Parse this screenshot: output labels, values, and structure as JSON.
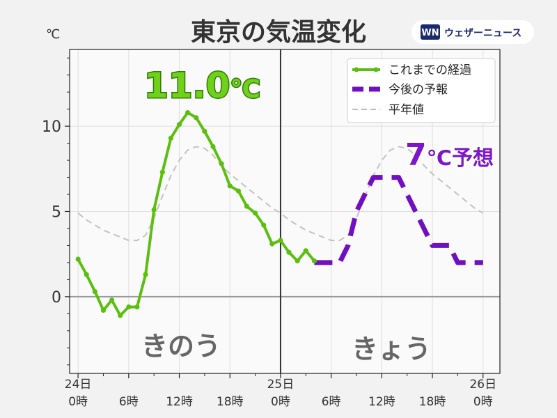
{
  "title": "東京の気温変化",
  "unit_label": "℃",
  "logo": {
    "mark": "WN",
    "text": "ウェザーニュース"
  },
  "day_labels": {
    "yesterday": "きのう",
    "today": "きょう"
  },
  "callouts": {
    "max_observed_num": "11.0",
    "max_observed_unit": "℃",
    "forecast_num": "7",
    "forecast_unit": "℃",
    "forecast_suffix": "予想"
  },
  "colors": {
    "observed": "#5cbf10",
    "forecast": "#7010c0",
    "normal": "#c2c2c2",
    "plot_bg": "#fbfafb",
    "page_bg": "#f2f2f2"
  },
  "chart_data": {
    "type": "line",
    "x_unit": "hours from 24日 0時",
    "xlim": [
      -1,
      50
    ],
    "ylim": [
      -4.5,
      14.5
    ],
    "yticks": [
      0,
      5,
      10
    ],
    "ytick_labels": [
      "0",
      "5",
      "10"
    ],
    "xticks": [
      0,
      6,
      12,
      18,
      24,
      30,
      36,
      42,
      48
    ],
    "xtick_labels": [
      [
        "24日",
        "0時"
      ],
      [
        "",
        "6時"
      ],
      [
        "",
        "12時"
      ],
      [
        "",
        "18時"
      ],
      [
        "25日",
        "0時"
      ],
      [
        "",
        "6時"
      ],
      [
        "",
        "12時"
      ],
      [
        "",
        "18時"
      ],
      [
        "26日",
        "0時"
      ]
    ],
    "divider_x": 24,
    "grid": true,
    "legend_position": "top-right",
    "series": [
      {
        "name": "これまでの経過",
        "style": "solid-markers",
        "x": [
          0,
          1,
          2,
          3,
          4,
          5,
          6,
          7,
          8,
          9,
          10,
          11,
          12,
          13,
          14,
          15,
          16,
          17,
          18,
          19,
          20,
          21,
          22,
          23,
          24,
          25,
          26,
          27,
          28
        ],
        "y": [
          2.2,
          1.3,
          0.3,
          -0.8,
          -0.2,
          -1.1,
          -0.6,
          -0.6,
          1.3,
          5.1,
          7.3,
          9.3,
          10.1,
          10.8,
          10.5,
          9.7,
          8.8,
          7.8,
          6.5,
          6.2,
          5.3,
          4.9,
          4.2,
          3.1,
          3.3,
          2.6,
          2.1,
          2.7,
          2.1
        ]
      },
      {
        "name": "今後の予報",
        "style": "dashed-thick",
        "x": [
          28,
          29,
          30,
          31,
          32,
          33,
          34,
          35,
          36,
          37,
          38,
          39,
          40,
          41,
          42,
          43,
          44,
          45,
          46,
          47,
          48
        ],
        "y": [
          2,
          2,
          2,
          2,
          3,
          5,
          6,
          7,
          7,
          7,
          7,
          6,
          5,
          4,
          3,
          3,
          3,
          2,
          2,
          2,
          2
        ]
      },
      {
        "name": "平年値",
        "style": "dashed-thin",
        "x": [
          0,
          1,
          2,
          3,
          4,
          5,
          6,
          7,
          8,
          9,
          10,
          11,
          12,
          13,
          14,
          15,
          16,
          17,
          18,
          19,
          20,
          21,
          22,
          23,
          24,
          25,
          26,
          27,
          28,
          29,
          30,
          31,
          32,
          33,
          34,
          35,
          36,
          37,
          38,
          39,
          40,
          41,
          42,
          43,
          44,
          45,
          46,
          47,
          48
        ],
        "y": [
          4.9,
          4.5,
          4.2,
          3.9,
          3.7,
          3.5,
          3.3,
          3.3,
          3.6,
          4.6,
          5.9,
          7.1,
          8.0,
          8.6,
          8.8,
          8.7,
          8.3,
          7.7,
          7.2,
          6.8,
          6.4,
          6.0,
          5.6,
          5.2,
          4.9,
          4.5,
          4.2,
          3.9,
          3.7,
          3.5,
          3.3,
          3.3,
          3.6,
          4.6,
          5.9,
          7.1,
          8.0,
          8.6,
          8.8,
          8.7,
          8.3,
          7.7,
          7.2,
          6.8,
          6.4,
          6.0,
          5.6,
          5.2,
          4.9
        ]
      }
    ]
  }
}
